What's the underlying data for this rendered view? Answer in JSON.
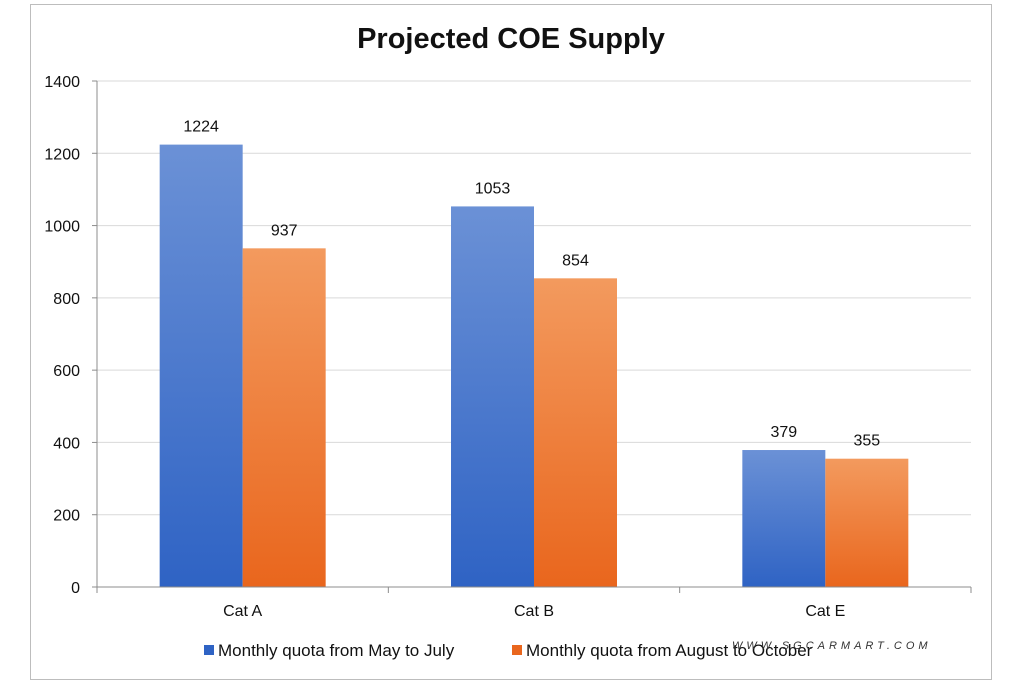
{
  "colors": {
    "series1_top": "#6b91d6",
    "series1_bottom": "#2f63c4",
    "series2_top": "#f39a5e",
    "series2_bottom": "#e9661d",
    "grid": "#d9d9d9",
    "axis": "#8c8c8c"
  },
  "watermark": "WWW.SGCARMART.COM",
  "chart_data": {
    "type": "bar",
    "title": "Projected COE Supply",
    "categories": [
      "Cat A",
      "Cat B",
      "Cat E"
    ],
    "series": [
      {
        "name": "Monthly quota from May to July",
        "values": [
          1224,
          1053,
          379
        ]
      },
      {
        "name": "Monthly quota from August to October",
        "values": [
          937,
          854,
          355
        ]
      }
    ],
    "ylim": [
      0,
      1400
    ],
    "yticks": [
      0,
      200,
      400,
      600,
      800,
      1000,
      1200,
      1400
    ],
    "xlabel": "",
    "ylabel": "",
    "grid": true,
    "legend": "bottom"
  }
}
